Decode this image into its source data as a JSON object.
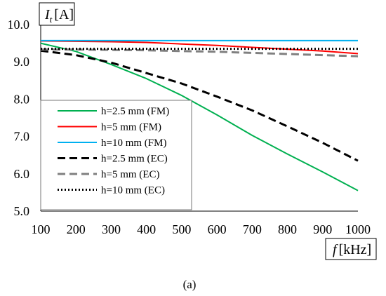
{
  "figure": {
    "caption": "(a)"
  },
  "chart_data": {
    "type": "line",
    "ylabel": "I_t [A]",
    "ylabel_main": "I",
    "ylabel_sub": "t",
    "ylabel_unit": "[A]",
    "xlabel": "f [kHz]",
    "xlabel_main": "f",
    "xlabel_unit": "[kHz]",
    "xlim": [
      100,
      1000
    ],
    "ylim": [
      5.0,
      10.0
    ],
    "xticks": [
      100,
      200,
      300,
      400,
      500,
      600,
      700,
      800,
      900,
      1000
    ],
    "yticks": [
      "5.0",
      "6.0",
      "7.0",
      "8.0",
      "9.0",
      "10.0"
    ],
    "grid": false,
    "legend_position": "bottom-left",
    "x": [
      100,
      200,
      300,
      400,
      500,
      600,
      700,
      800,
      900,
      1000
    ],
    "series": [
      {
        "name": "h=2.5 mm (FM)",
        "color": "#00b050",
        "style": "solid",
        "values": [
          9.5,
          9.28,
          8.93,
          8.55,
          8.1,
          7.58,
          7.03,
          6.53,
          6.05,
          5.55
        ]
      },
      {
        "name": "h=5 mm (FM)",
        "color": "#ff0000",
        "style": "solid",
        "values": [
          9.56,
          9.55,
          9.54,
          9.52,
          9.48,
          9.44,
          9.39,
          9.34,
          9.29,
          9.22
        ]
      },
      {
        "name": "h=10 mm (FM)",
        "color": "#00b0f0",
        "style": "solid",
        "values": [
          9.57,
          9.57,
          9.57,
          9.57,
          9.57,
          9.57,
          9.57,
          9.57,
          9.57,
          9.57
        ]
      },
      {
        "name": "h=2.5 mm (EC)",
        "color": "#000000",
        "style": "dashed",
        "values": [
          9.3,
          9.18,
          8.98,
          8.7,
          8.42,
          8.07,
          7.7,
          7.27,
          6.83,
          6.35
        ]
      },
      {
        "name": "h=5 mm (EC)",
        "color": "#808080",
        "style": "dashed",
        "values": [
          9.33,
          9.33,
          9.32,
          9.31,
          9.29,
          9.27,
          9.24,
          9.21,
          9.18,
          9.15
        ]
      },
      {
        "name": "h=10 mm (EC)",
        "color": "#000000",
        "style": "dotted",
        "values": [
          9.35,
          9.35,
          9.35,
          9.35,
          9.35,
          9.35,
          9.35,
          9.35,
          9.35,
          9.35
        ]
      }
    ]
  }
}
